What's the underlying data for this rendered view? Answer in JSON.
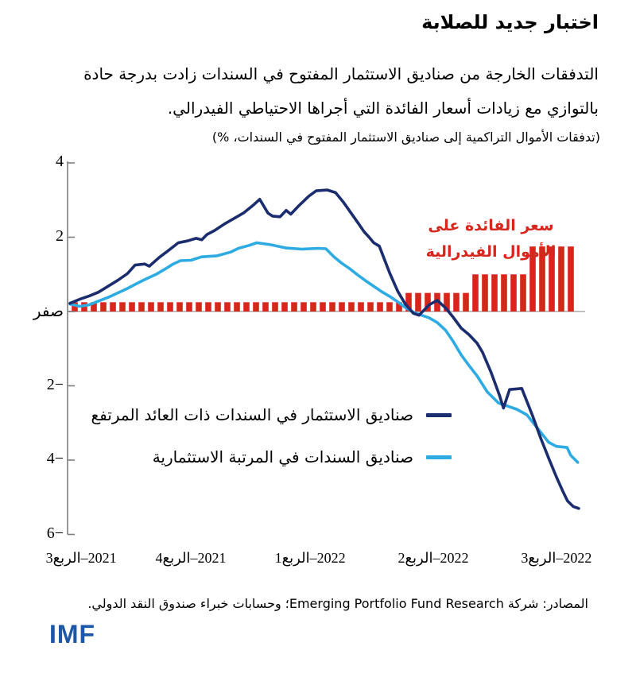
{
  "header": {
    "title": "اختبار جديد للصلابة",
    "subtitle_line1": "التدفقات الخارجة من صناديق الاستثمار المفتوح في السندات زادت بدرجة حادة",
    "subtitle_line2": "بالتوازي مع زيادات أسعار الفائدة التي أجراها الاحتياطي الفيدرالي.",
    "units_note": "(تدفقات الأموال التراكمية إلى صناديق الاستثمار المفتوح في السندات، %)"
  },
  "chart_data": {
    "type": "line+bar",
    "title": "اختبار جديد للصلابة",
    "ylabel": "",
    "unit": "%",
    "ylim": [
      -6,
      4
    ],
    "grid": "zero-line-only",
    "colors": {
      "axis": "#7d7d7d",
      "zero_line": "#bdbdbd",
      "high_yield_line": "#1b2d6e",
      "investment_grade_line": "#2fabe3",
      "policy_rate_bar": "#d7261c"
    },
    "y_ticks": [
      {
        "value": 4,
        "label": "4"
      },
      {
        "value": 2,
        "label": "2"
      },
      {
        "value": 0,
        "label": "صفر"
      },
      {
        "value": -2,
        "label": "2−"
      },
      {
        "value": -4,
        "label": "4−"
      },
      {
        "value": -6,
        "label": "6−"
      }
    ],
    "x_ticks": [
      {
        "t": 0.022,
        "num": "3",
        "word": "الربع",
        "year": "–2021"
      },
      {
        "t": 0.2375,
        "num": "4",
        "word": "الربع",
        "year": "–2021"
      },
      {
        "t": 0.472,
        "num": "1",
        "word": "الربع",
        "year": "–2022"
      },
      {
        "t": 0.714,
        "num": "2",
        "word": "الربع",
        "year": "–2022"
      },
      {
        "t": 0.956,
        "num": "3",
        "word": "الربع",
        "year": "–2022"
      }
    ],
    "series": [
      {
        "name": "صناديق السندات في المرتبة الاستثمارية",
        "type": "line",
        "color": "#2fabe3",
        "points": [
          [
            0.0,
            0.2
          ],
          [
            0.019,
            0.14
          ],
          [
            0.038,
            0.18
          ],
          [
            0.056,
            0.28
          ],
          [
            0.075,
            0.38
          ],
          [
            0.094,
            0.5
          ],
          [
            0.113,
            0.62
          ],
          [
            0.131,
            0.75
          ],
          [
            0.15,
            0.88
          ],
          [
            0.169,
            1.0
          ],
          [
            0.188,
            1.15
          ],
          [
            0.203,
            1.28
          ],
          [
            0.217,
            1.37
          ],
          [
            0.238,
            1.38
          ],
          [
            0.258,
            1.47
          ],
          [
            0.289,
            1.5
          ],
          [
            0.316,
            1.6
          ],
          [
            0.331,
            1.7
          ],
          [
            0.352,
            1.78
          ],
          [
            0.367,
            1.85
          ],
          [
            0.394,
            1.8
          ],
          [
            0.425,
            1.71
          ],
          [
            0.456,
            1.68
          ],
          [
            0.488,
            1.7
          ],
          [
            0.503,
            1.69
          ],
          [
            0.519,
            1.47
          ],
          [
            0.534,
            1.3
          ],
          [
            0.55,
            1.15
          ],
          [
            0.566,
            0.98
          ],
          [
            0.581,
            0.83
          ],
          [
            0.597,
            0.68
          ],
          [
            0.613,
            0.53
          ],
          [
            0.628,
            0.41
          ],
          [
            0.644,
            0.26
          ],
          [
            0.659,
            0.11
          ],
          [
            0.675,
            -0.02
          ],
          [
            0.691,
            -0.1
          ],
          [
            0.706,
            -0.17
          ],
          [
            0.722,
            -0.3
          ],
          [
            0.738,
            -0.5
          ],
          [
            0.753,
            -0.8
          ],
          [
            0.769,
            -1.17
          ],
          [
            0.784,
            -1.45
          ],
          [
            0.8,
            -1.73
          ],
          [
            0.82,
            -2.16
          ],
          [
            0.842,
            -2.46
          ],
          [
            0.863,
            -2.56
          ],
          [
            0.878,
            -2.63
          ],
          [
            0.898,
            -2.78
          ],
          [
            0.92,
            -3.16
          ],
          [
            0.941,
            -3.52
          ],
          [
            0.956,
            -3.63
          ],
          [
            0.977,
            -3.66
          ],
          [
            0.984,
            -3.87
          ],
          [
            0.998,
            -4.06
          ]
        ]
      },
      {
        "name": "صناديق الاستثمار في السندات ذات العائد المرتفع",
        "type": "line",
        "color": "#1b2d6e",
        "points": [
          [
            0.0,
            0.22
          ],
          [
            0.019,
            0.33
          ],
          [
            0.038,
            0.42
          ],
          [
            0.056,
            0.52
          ],
          [
            0.075,
            0.68
          ],
          [
            0.094,
            0.84
          ],
          [
            0.113,
            1.02
          ],
          [
            0.128,
            1.25
          ],
          [
            0.147,
            1.28
          ],
          [
            0.156,
            1.22
          ],
          [
            0.175,
            1.45
          ],
          [
            0.194,
            1.65
          ],
          [
            0.213,
            1.85
          ],
          [
            0.231,
            1.9
          ],
          [
            0.248,
            1.97
          ],
          [
            0.259,
            1.93
          ],
          [
            0.269,
            2.07
          ],
          [
            0.284,
            2.18
          ],
          [
            0.303,
            2.35
          ],
          [
            0.322,
            2.5
          ],
          [
            0.341,
            2.65
          ],
          [
            0.359,
            2.85
          ],
          [
            0.373,
            3.02
          ],
          [
            0.389,
            2.65
          ],
          [
            0.398,
            2.57
          ],
          [
            0.413,
            2.55
          ],
          [
            0.425,
            2.72
          ],
          [
            0.434,
            2.62
          ],
          [
            0.45,
            2.85
          ],
          [
            0.469,
            3.1
          ],
          [
            0.484,
            3.25
          ],
          [
            0.506,
            3.27
          ],
          [
            0.522,
            3.2
          ],
          [
            0.537,
            2.95
          ],
          [
            0.55,
            2.7
          ],
          [
            0.566,
            2.39
          ],
          [
            0.578,
            2.15
          ],
          [
            0.588,
            2.0
          ],
          [
            0.597,
            1.85
          ],
          [
            0.608,
            1.76
          ],
          [
            0.628,
            1.05
          ],
          [
            0.644,
            0.55
          ],
          [
            0.659,
            0.2
          ],
          [
            0.675,
            -0.05
          ],
          [
            0.686,
            -0.1
          ],
          [
            0.706,
            0.18
          ],
          [
            0.722,
            0.3
          ],
          [
            0.738,
            0.1
          ],
          [
            0.753,
            -0.15
          ],
          [
            0.769,
            -0.45
          ],
          [
            0.784,
            -0.62
          ],
          [
            0.8,
            -0.85
          ],
          [
            0.811,
            -1.1
          ],
          [
            0.828,
            -1.65
          ],
          [
            0.844,
            -2.25
          ],
          [
            0.852,
            -2.6
          ],
          [
            0.864,
            -2.1
          ],
          [
            0.888,
            -2.07
          ],
          [
            0.909,
            -2.8
          ],
          [
            0.925,
            -3.4
          ],
          [
            0.941,
            -3.95
          ],
          [
            0.956,
            -4.45
          ],
          [
            0.969,
            -4.85
          ],
          [
            0.978,
            -5.1
          ],
          [
            0.989,
            -5.25
          ],
          [
            1.0,
            -5.3
          ]
        ]
      }
    ],
    "policy_rate_bars": {
      "name": "سعر الفائدة على الأموال الفيدرالية",
      "type": "bar",
      "color": "#d7261c",
      "rate_steps": [
        {
          "count": 35,
          "rate": 0.25
        },
        {
          "count": 7,
          "rate": 0.5
        },
        {
          "count": 6,
          "rate": 1.0
        },
        {
          "count": 5,
          "rate": 1.75
        }
      ]
    },
    "annotation": {
      "line1": "سعر الفائدة على",
      "line2": "الأموال الفيدرالية",
      "color": "#d7261c"
    }
  },
  "legend": {
    "items": [
      {
        "label": "صناديق الاستثمار في السندات ذات العائد المرتفع",
        "color": "#1b2d6e"
      },
      {
        "label": "صناديق السندات في المرتبة الاستثمارية",
        "color": "#2fabe3"
      }
    ]
  },
  "footer": {
    "source": "المصادر: شركة Emerging Portfolio Fund Research؛ وحسابات خبراء صندوق النقد الدولي.",
    "logo": "IMF"
  }
}
